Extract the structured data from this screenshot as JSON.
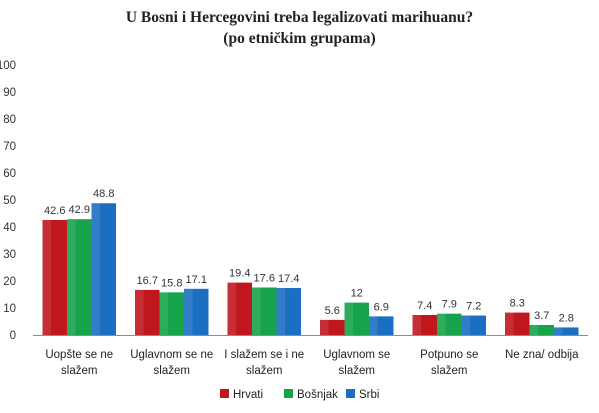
{
  "chart_data": {
    "type": "bar",
    "title": [
      "U Bosni i Hercegovini treba legalizovati marihuanu?",
      "(po etničkim grupama)"
    ],
    "categories": [
      [
        "Uopšte se ne",
        "slažem"
      ],
      [
        "Uglavnom se ne",
        "slažem"
      ],
      [
        "I slažem se i ne",
        "slažem"
      ],
      [
        "Uglavnom se",
        "slažem"
      ],
      [
        "Potpuno se",
        "slažem"
      ],
      [
        "Ne zna/ odbija"
      ]
    ],
    "series": [
      {
        "name": "Hrvati",
        "color": "#c0171f",
        "values": [
          42.6,
          16.7,
          19.4,
          5.6,
          7.4,
          8.3
        ],
        "labels": [
          "42.6",
          "16.7",
          "19.4",
          "5.6",
          "7.4",
          "8.3"
        ]
      },
      {
        "name": "Bošnjak",
        "color": "#16a34a",
        "values": [
          42.9,
          15.8,
          17.6,
          12,
          7.9,
          3.7
        ],
        "labels": [
          "42.9",
          "15.8",
          "17.6",
          "12",
          "7.9",
          "3.7"
        ]
      },
      {
        "name": "Srbi",
        "color": "#1a6fc2",
        "values": [
          48.8,
          17.1,
          17.4,
          6.9,
          7.2,
          2.8
        ],
        "labels": [
          "48.8",
          "17.1",
          "17.4",
          "6.9",
          "7.2",
          "2.8"
        ]
      }
    ],
    "yticks": [
      "0",
      "10",
      "20",
      "30",
      "40",
      "50",
      "60",
      "70",
      "80",
      "90",
      "100"
    ],
    "ylim": [
      0,
      100
    ],
    "grid": false,
    "legend_position": "bottom"
  }
}
